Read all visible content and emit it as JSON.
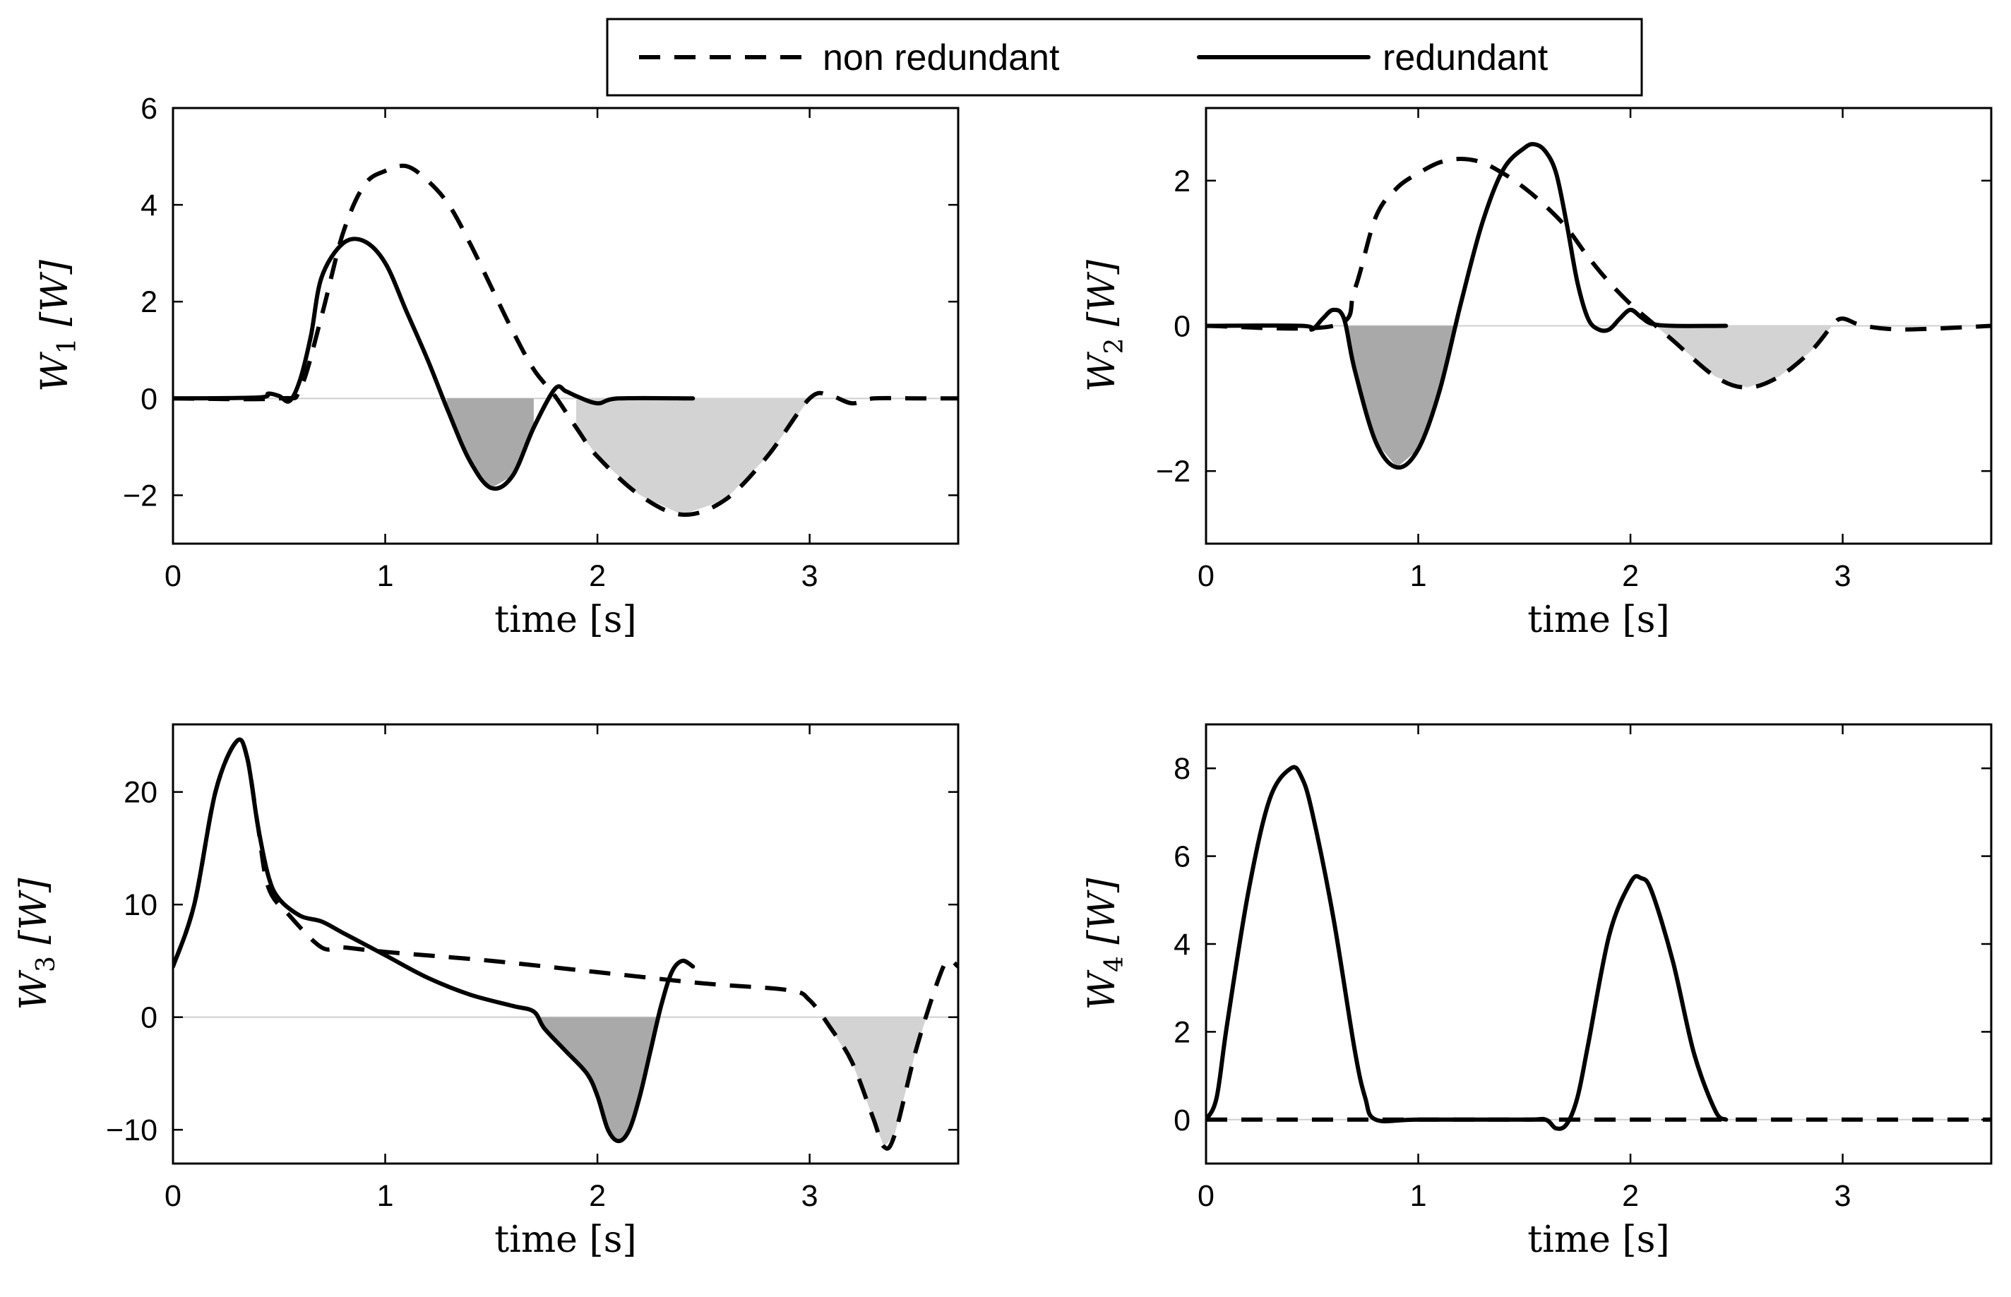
{
  "legend": {
    "non_redundant": "non redundant",
    "redundant": "redundant"
  },
  "colors": {
    "dark_fill": "#a9a9a9",
    "light_fill": "#d3d3d3",
    "line": "#000000",
    "zero_line": "#cfcfcf"
  },
  "chart_data": [
    {
      "type": "line",
      "xlabel": "time [s]",
      "ylabel_main": "W",
      "ylabel_sub": "1",
      "ylabel_unit": "[W]",
      "xlim": [
        0,
        3.7
      ],
      "ylim": [
        -3,
        6
      ],
      "xticks": [
        0,
        1,
        2,
        3
      ],
      "yticks": [
        -2,
        0,
        2,
        4,
        6
      ],
      "ytick_labels": [
        "−2",
        "0",
        "2",
        "4",
        "6"
      ],
      "series": [
        {
          "name": "non redundant",
          "style": "dashed",
          "x": [
            0,
            0.5,
            0.6,
            0.7,
            0.8,
            0.9,
            1.0,
            1.1,
            1.2,
            1.3,
            1.4,
            1.5,
            1.6,
            1.7,
            1.8,
            1.9,
            2.0,
            2.2,
            2.4,
            2.6,
            2.8,
            3.0,
            3.1,
            3.2,
            3.3,
            3.5,
            3.7
          ],
          "y": [
            0,
            0,
            0.2,
            1.7,
            3.4,
            4.4,
            4.7,
            4.8,
            4.5,
            4.0,
            3.2,
            2.3,
            1.4,
            0.6,
            0.05,
            -0.6,
            -1.2,
            -2.0,
            -2.4,
            -2.1,
            -1.2,
            0,
            0.05,
            -0.1,
            0,
            0,
            0
          ]
        },
        {
          "name": "redundant",
          "style": "solid",
          "x": [
            0,
            0.4,
            0.45,
            0.5,
            0.55,
            0.6,
            0.65,
            0.7,
            0.8,
            0.9,
            1.0,
            1.1,
            1.2,
            1.3,
            1.4,
            1.5,
            1.6,
            1.7,
            1.8,
            1.85,
            1.9,
            2.0,
            2.1,
            2.45
          ],
          "y": [
            0,
            0.02,
            0.1,
            0.05,
            -0.05,
            0.4,
            1.3,
            2.5,
            3.2,
            3.25,
            2.8,
            1.8,
            0.8,
            -0.3,
            -1.3,
            -1.85,
            -1.6,
            -0.6,
            0.2,
            0.15,
            0.05,
            -0.1,
            0,
            0
          ]
        },
        {
          "name": "redundant negative area",
          "style": "fill-dark",
          "x_range": [
            1.29,
            1.7
          ]
        },
        {
          "name": "non redundant negative area",
          "style": "fill-light",
          "x_range": [
            1.9,
            3.0
          ]
        }
      ]
    },
    {
      "type": "line",
      "xlabel": "time [s]",
      "ylabel_main": "W",
      "ylabel_sub": "2",
      "ylabel_unit": "[W]",
      "xlim": [
        0,
        3.7
      ],
      "ylim": [
        -3,
        3
      ],
      "xticks": [
        0,
        1,
        2,
        3
      ],
      "yticks": [
        -2,
        0,
        2
      ],
      "ytick_labels": [
        "−2",
        "0",
        "2"
      ],
      "series": [
        {
          "name": "non redundant",
          "style": "dashed",
          "x": [
            0,
            0.6,
            0.7,
            0.8,
            0.9,
            1.0,
            1.1,
            1.2,
            1.3,
            1.4,
            1.5,
            1.6,
            1.7,
            1.8,
            1.9,
            2.0,
            2.1,
            2.2,
            2.4,
            2.55,
            2.7,
            2.85,
            2.95,
            3.0,
            3.1,
            3.3,
            3.7
          ],
          "y": [
            0,
            0,
            0.5,
            1.5,
            1.9,
            2.1,
            2.25,
            2.3,
            2.25,
            2.1,
            1.9,
            1.65,
            1.35,
            0.95,
            0.6,
            0.3,
            0.05,
            -0.2,
            -0.7,
            -0.85,
            -0.7,
            -0.35,
            0,
            0.1,
            0,
            -0.05,
            0
          ]
        },
        {
          "name": "redundant",
          "style": "solid",
          "x": [
            0,
            0.45,
            0.5,
            0.55,
            0.6,
            0.65,
            0.7,
            0.8,
            0.9,
            1.0,
            1.1,
            1.2,
            1.3,
            1.4,
            1.5,
            1.55,
            1.6,
            1.65,
            1.7,
            1.75,
            1.8,
            1.85,
            1.9,
            1.95,
            2.0,
            2.05,
            2.1,
            2.2,
            2.45
          ],
          "y": [
            0,
            0,
            -0.05,
            0.1,
            0.22,
            0.1,
            -0.6,
            -1.6,
            -1.95,
            -1.7,
            -0.9,
            0.3,
            1.4,
            2.15,
            2.45,
            2.5,
            2.4,
            2.1,
            1.4,
            0.6,
            0.1,
            -0.05,
            -0.05,
            0.1,
            0.22,
            0.12,
            0.03,
            0,
            0
          ]
        },
        {
          "name": "redundant negative area",
          "style": "fill-dark",
          "x_range": [
            0.65,
            1.2
          ]
        },
        {
          "name": "non redundant negative area",
          "style": "fill-light",
          "x_range": [
            2.12,
            2.95
          ]
        }
      ]
    },
    {
      "type": "line",
      "xlabel": "time [s]",
      "ylabel_main": "W",
      "ylabel_sub": "3",
      "ylabel_unit": "[W]",
      "xlim": [
        0,
        3.7
      ],
      "ylim": [
        -13,
        26
      ],
      "xticks": [
        0,
        1,
        2,
        3
      ],
      "yticks": [
        -10,
        0,
        10,
        20
      ],
      "ytick_labels": [
        "−10",
        "0",
        "10",
        "20"
      ],
      "series": [
        {
          "name": "non redundant",
          "style": "dashed",
          "x": [
            0,
            0.1,
            0.2,
            0.3,
            0.35,
            0.4,
            0.45,
            0.55,
            0.7,
            0.8,
            1.0,
            1.5,
            2.0,
            2.5,
            2.9,
            3.0,
            3.1,
            3.2,
            3.3,
            3.35,
            3.4,
            3.5,
            3.6,
            3.65,
            3.7
          ],
          "y": [
            4.5,
            10,
            20,
            24.5,
            23,
            17,
            11.5,
            9,
            6.2,
            6.2,
            5.8,
            5,
            4,
            3,
            2.4,
            1.5,
            -1,
            -4,
            -9,
            -11.5,
            -10.5,
            -3,
            3,
            5,
            4.5
          ]
        },
        {
          "name": "redundant",
          "style": "solid",
          "x": [
            0,
            0.1,
            0.2,
            0.3,
            0.35,
            0.4,
            0.45,
            0.5,
            0.6,
            0.7,
            0.8,
            1.0,
            1.2,
            1.4,
            1.6,
            1.7,
            1.75,
            1.85,
            1.95,
            2.0,
            2.05,
            2.1,
            2.15,
            2.2,
            2.25,
            2.3,
            2.35,
            2.4,
            2.45
          ],
          "y": [
            4.5,
            10,
            20,
            24.5,
            23,
            17,
            12.5,
            10.5,
            9,
            8.5,
            7.5,
            5.5,
            3.5,
            2,
            1,
            0.5,
            -1,
            -3,
            -5,
            -7,
            -10,
            -11,
            -10,
            -7,
            -3,
            1,
            4,
            5,
            4.5
          ]
        },
        {
          "name": "redundant negative area",
          "style": "fill-dark",
          "x_range": [
            1.72,
            2.29
          ]
        },
        {
          "name": "non redundant negative area",
          "style": "fill-light",
          "x_range": [
            3.06,
            3.55
          ]
        }
      ]
    },
    {
      "type": "line",
      "xlabel": "time [s]",
      "ylabel_main": "W",
      "ylabel_sub": "4",
      "ylabel_unit": "[W]",
      "xlim": [
        0,
        3.7
      ],
      "ylim": [
        -1,
        9
      ],
      "xticks": [
        0,
        1,
        2,
        3
      ],
      "yticks": [
        0,
        2,
        4,
        6,
        8
      ],
      "ytick_labels": [
        "0",
        "2",
        "4",
        "6",
        "8"
      ],
      "series": [
        {
          "name": "non redundant",
          "style": "dashed",
          "x": [
            0,
            3.7
          ],
          "y": [
            0,
            0
          ]
        },
        {
          "name": "redundant",
          "style": "solid",
          "x": [
            0,
            0.05,
            0.1,
            0.2,
            0.3,
            0.4,
            0.45,
            0.5,
            0.6,
            0.7,
            0.75,
            0.8,
            1.0,
            1.5,
            1.6,
            1.65,
            1.7,
            1.75,
            1.8,
            1.9,
            2.0,
            2.05,
            2.1,
            2.2,
            2.3,
            2.4,
            2.45
          ],
          "y": [
            0,
            0.5,
            2.2,
            5.2,
            7.3,
            8.0,
            7.8,
            7.0,
            4.6,
            1.6,
            0.5,
            0,
            0,
            0,
            0,
            -0.2,
            -0.1,
            0.5,
            1.7,
            4.2,
            5.4,
            5.5,
            5.2,
            3.6,
            1.5,
            0.2,
            0
          ]
        }
      ]
    }
  ]
}
